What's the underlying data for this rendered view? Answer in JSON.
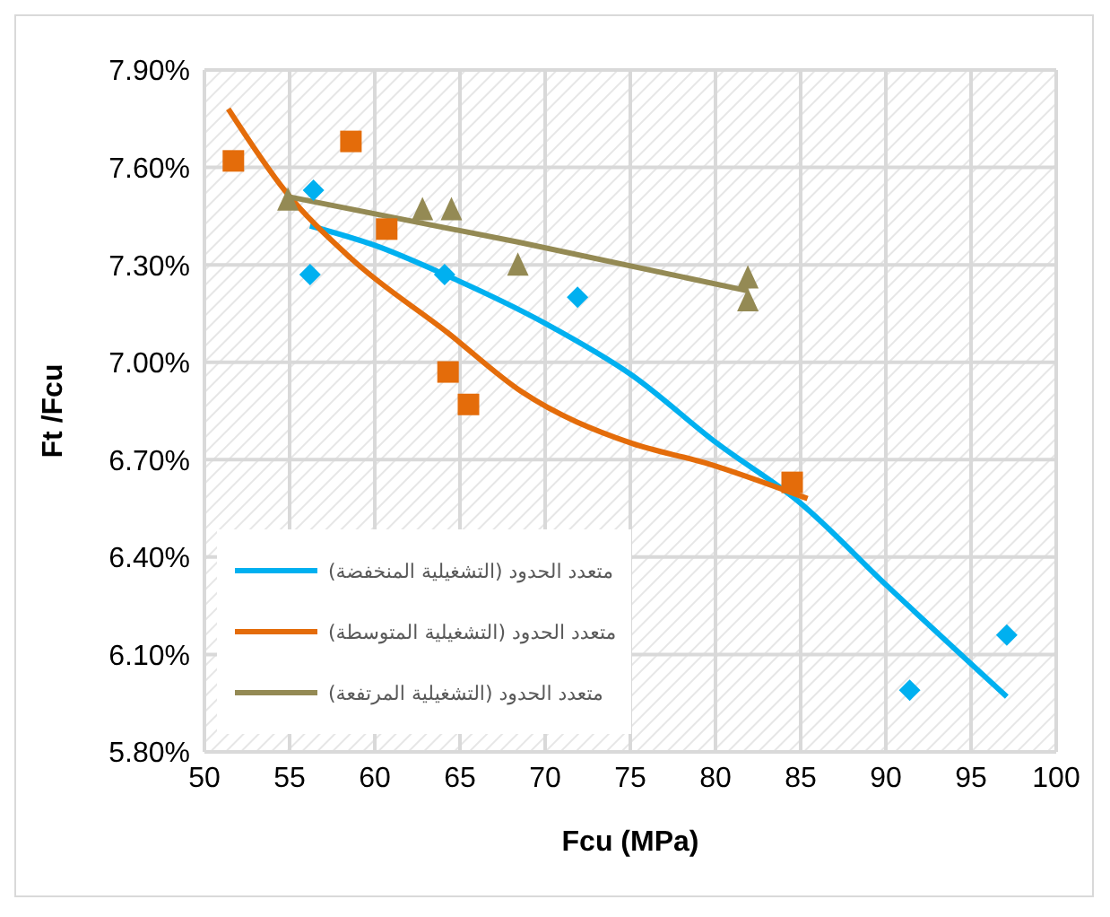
{
  "chart_data": {
    "type": "scatter",
    "xlabel": "Fcu  (MPa)",
    "ylabel": "Ft /Fcu",
    "xlim": [
      50,
      100
    ],
    "xticks": [
      50,
      55,
      60,
      65,
      70,
      75,
      80,
      85,
      90,
      95,
      100
    ],
    "ylim": [
      5.8,
      7.9
    ],
    "yticks": [
      {
        "value": 5.8,
        "label": "5.80%"
      },
      {
        "value": 6.1,
        "label": "6.10%"
      },
      {
        "value": 6.4,
        "label": "6.40%"
      },
      {
        "value": 6.7,
        "label": "6.70%"
      },
      {
        "value": 7.0,
        "label": "7.00%"
      },
      {
        "value": 7.3,
        "label": "7.30%"
      },
      {
        "value": 7.6,
        "label": "7.60%"
      },
      {
        "value": 7.9,
        "label": "7.90%"
      }
    ],
    "grid": true,
    "legend": "bottom left",
    "series": [
      {
        "color": "#00b0f0",
        "marker": "diamond",
        "x": [
          56.4,
          56.2,
          64.1,
          71.9,
          91.4,
          97.1
        ],
        "values": [
          7.53,
          7.27,
          7.27,
          7.2,
          5.99,
          6.16
        ]
      },
      {
        "color": "#e46c0a",
        "marker": "square",
        "x": [
          51.7,
          58.6,
          60.7,
          64.3,
          65.5,
          84.5
        ],
        "values": [
          7.62,
          7.68,
          7.41,
          6.97,
          6.87,
          6.63
        ]
      },
      {
        "color": "#948a54",
        "marker": "triangle",
        "x": [
          54.9,
          62.8,
          64.5,
          68.4,
          81.9,
          81.9
        ],
        "values": [
          7.5,
          7.47,
          7.47,
          7.3,
          7.26,
          7.19
        ]
      },
      {
        "type": "line",
        "name": "متعدد الحدود (التشغيلية المنخفضة)",
        "color": "#00b0f0",
        "marker": "none",
        "line_style": "solid",
        "x": [
          56.2,
          60,
          64.1,
          70,
          75.1,
          80.1,
          84.9,
          90.1,
          97.1
        ],
        "values": [
          7.42,
          7.36,
          7.27,
          7.12,
          6.96,
          6.75,
          6.57,
          6.31,
          5.97
        ]
      },
      {
        "type": "line",
        "name": "متعدد الحدود (التشغيلية المتوسطة)",
        "color": "#e46c0a",
        "marker": "none",
        "line_style": "solid",
        "x": [
          51.4,
          54.7,
          58.6,
          64.3,
          68.6,
          75.1,
          79.4,
          85.4
        ],
        "values": [
          7.78,
          7.53,
          7.32,
          7.09,
          6.91,
          6.75,
          6.69,
          6.58
        ]
      },
      {
        "type": "line",
        "name": "متعدد الحدود (التشغيلية المرتفعة)",
        "color": "#948a54",
        "marker": "none",
        "line_style": "solid",
        "x": [
          54.9,
          68.4,
          81.9
        ],
        "values": [
          7.51,
          7.37,
          7.22
        ]
      }
    ]
  }
}
